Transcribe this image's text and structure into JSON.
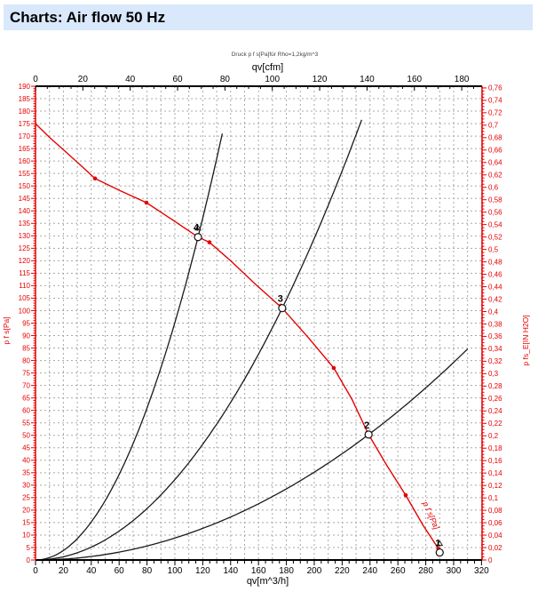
{
  "title": "Charts: Air flow 50 Hz",
  "colors": {
    "red": "#e60000",
    "black": "#1a1a1a",
    "grid": "#a8a8a8",
    "banner_bg": "#d9e8fb"
  },
  "chart_data": {
    "type": "line",
    "small_title": "Druck p f s[Pa]für Rho=1,2kg/m^3",
    "curve_label": "p f s[Pa]",
    "axis_top": {
      "label": "qv[cfm]",
      "label_step": 20,
      "minor_step": 5,
      "label_max": 180,
      "tick_max": 185,
      "m3h_per_cfm": 1.699
    },
    "axis_bottom": {
      "label": "qv[m^3/h]",
      "max": 320.4,
      "label_step": 20,
      "minor_step": 5,
      "tick_max": 320
    },
    "axis_left": {
      "label": "p f s[Pa]",
      "max": 190,
      "label_step": 5,
      "minor_step": 1
    },
    "axis_right": {
      "label": "p fs_E[IN H2O]",
      "label_max": 0.76,
      "label_step": 0.02,
      "minor_step": 0.005,
      "pa_per_unit": 249.1
    },
    "grid": {
      "x_step": 10,
      "y_step": 5
    },
    "fan_curve": {
      "name": "p f s[Pa]",
      "points": [
        [
          0,
          175
        ],
        [
          10,
          169.5
        ],
        [
          21,
          164
        ],
        [
          32,
          158.5
        ],
        [
          42.7,
          153
        ],
        [
          61,
          148
        ],
        [
          79.6,
          143.3
        ],
        [
          98,
          136.5
        ],
        [
          116.6,
          129.5
        ],
        [
          124.8,
          127.4
        ],
        [
          140,
          120
        ],
        [
          158,
          110.5
        ],
        [
          177,
          101
        ],
        [
          196,
          89
        ],
        [
          214,
          77
        ],
        [
          227,
          64.5
        ],
        [
          239,
          50.3
        ],
        [
          252,
          38
        ],
        [
          265.6,
          26
        ],
        [
          278,
          14
        ],
        [
          291,
          3
        ]
      ],
      "markers": [
        [
          42.7,
          153
        ],
        [
          79.6,
          143.3
        ],
        [
          124.8,
          127.4
        ],
        [
          176,
          102
        ],
        [
          214,
          77
        ],
        [
          238,
          51
        ],
        [
          265.6,
          26
        ],
        [
          289,
          4.5
        ]
      ]
    },
    "system_curves": [
      {
        "k": 0.009524,
        "q_end": 134.8
      },
      {
        "k": 0.003224,
        "q_end": 235.6
      },
      {
        "k": 0.0008806,
        "q_end": 310
      }
    ],
    "operating_points": [
      {
        "n": "1",
        "q": 290,
        "p": 3,
        "arrow": true
      },
      {
        "n": "2",
        "q": 239,
        "p": 50.3,
        "arrow": false
      },
      {
        "n": "3",
        "q": 177,
        "p": 101,
        "arrow": false
      },
      {
        "n": "4",
        "q": 116.6,
        "p": 129.5,
        "arrow": true
      }
    ]
  }
}
